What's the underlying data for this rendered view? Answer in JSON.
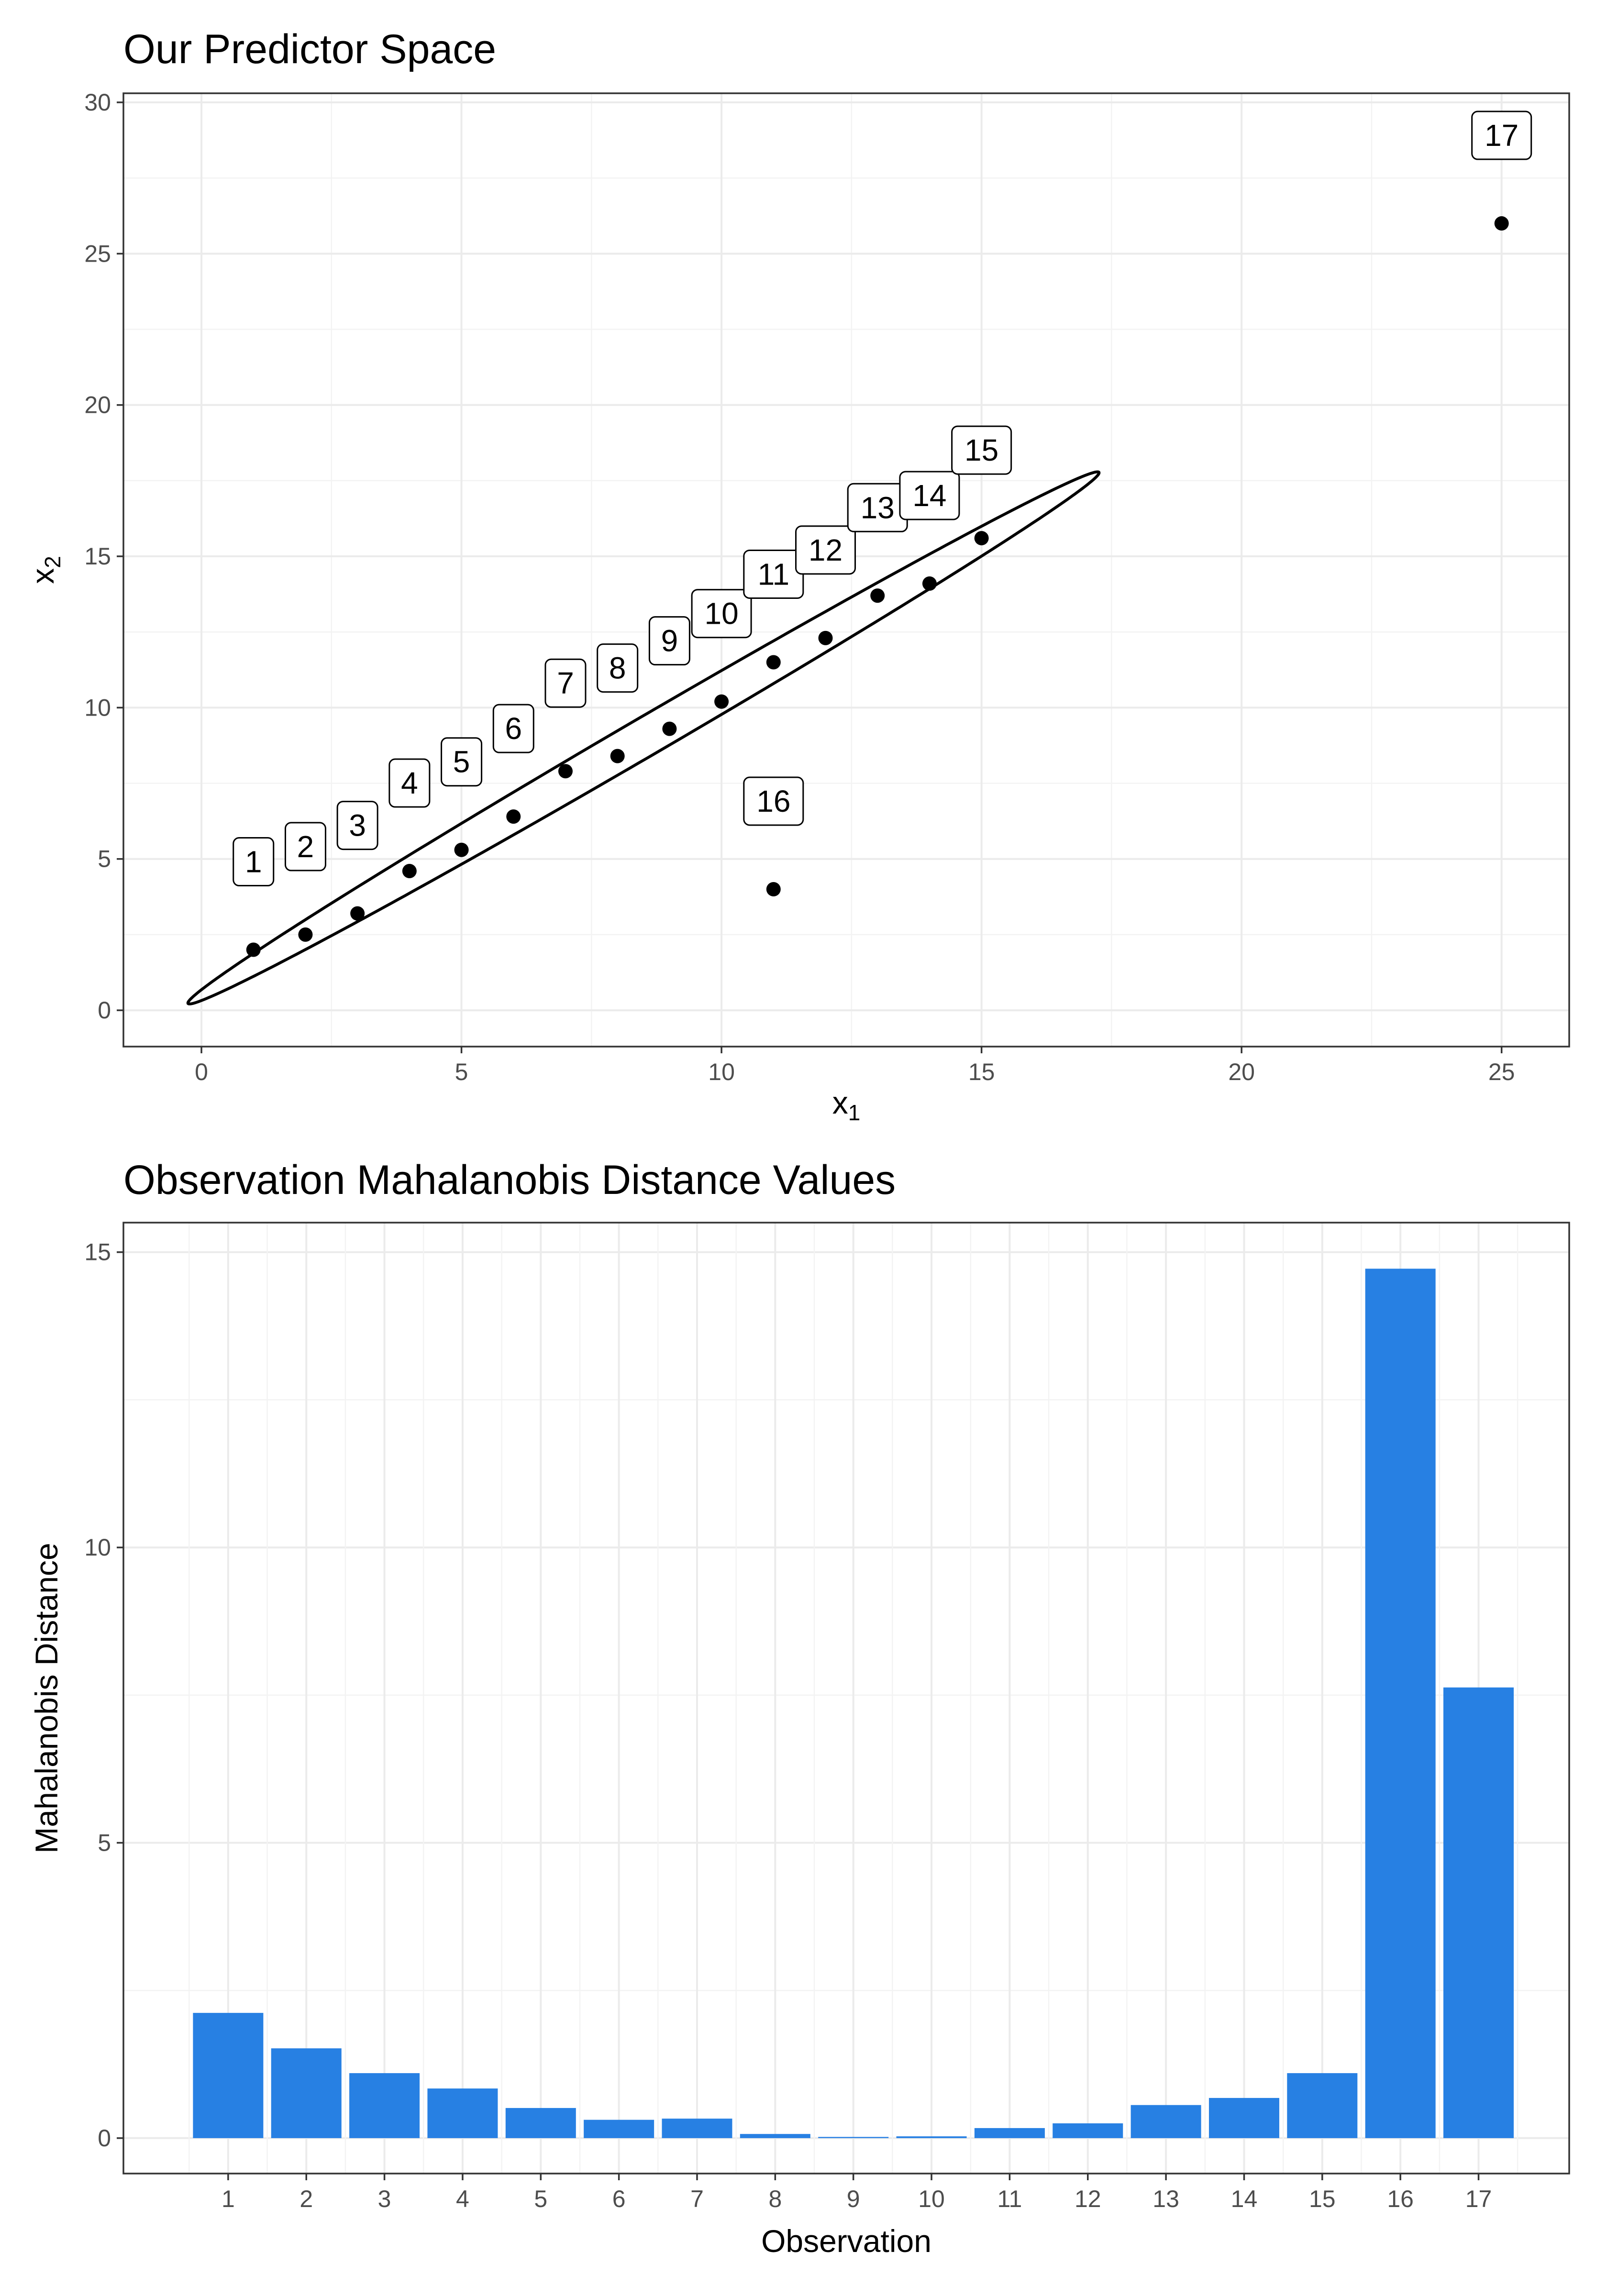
{
  "chart_data": [
    {
      "type": "scatter",
      "title": "Our Predictor Space",
      "xlabel": "x",
      "xlabel_sub": "1",
      "ylabel": "x",
      "ylabel_sub": "2",
      "xlim": [
        -1.5,
        26.3
      ],
      "ylim": [
        -1.2,
        30.3
      ],
      "xticks": [
        0,
        5,
        10,
        15,
        20,
        25
      ],
      "yticks": [
        0,
        5,
        10,
        15,
        20,
        25,
        30
      ],
      "grid": true,
      "points": [
        {
          "label": "1",
          "x": 1,
          "y": 2.0
        },
        {
          "label": "2",
          "x": 2,
          "y": 2.5
        },
        {
          "label": "3",
          "x": 3,
          "y": 3.2
        },
        {
          "label": "4",
          "x": 4,
          "y": 4.6
        },
        {
          "label": "5",
          "x": 5,
          "y": 5.3
        },
        {
          "label": "6",
          "x": 6,
          "y": 6.4
        },
        {
          "label": "7",
          "x": 7,
          "y": 7.9
        },
        {
          "label": "8",
          "x": 8,
          "y": 8.4
        },
        {
          "label": "9",
          "x": 9,
          "y": 9.3
        },
        {
          "label": "10",
          "x": 10,
          "y": 10.2
        },
        {
          "label": "11",
          "x": 11,
          "y": 11.5
        },
        {
          "label": "12",
          "x": 12,
          "y": 12.3
        },
        {
          "label": "13",
          "x": 13,
          "y": 13.7
        },
        {
          "label": "14",
          "x": 14,
          "y": 14.1
        },
        {
          "label": "15",
          "x": 15,
          "y": 15.6
        },
        {
          "label": "16",
          "x": 11,
          "y": 4.0
        },
        {
          "label": "17",
          "x": 25,
          "y": 26.0
        }
      ],
      "ellipse": {
        "center": [
          8.5,
          9.0
        ],
        "semi_major": 12.4,
        "semi_minor": 0.52,
        "angle_deg": 45.1
      }
    },
    {
      "type": "bar",
      "title": "Observation Mahalanobis Distance Values",
      "xlabel": "Observation",
      "ylabel": "Mahalanobis Distance",
      "categories": [
        "1",
        "2",
        "3",
        "4",
        "5",
        "6",
        "7",
        "8",
        "9",
        "10",
        "11",
        "12",
        "13",
        "14",
        "15",
        "16",
        "17"
      ],
      "values": [
        2.12,
        1.52,
        1.1,
        0.84,
        0.51,
        0.31,
        0.33,
        0.07,
        0.02,
        0.03,
        0.17,
        0.25,
        0.56,
        0.68,
        1.1,
        14.72,
        7.63
      ],
      "ylim": [
        -0.6,
        15.5
      ],
      "yticks": [
        0,
        5,
        10,
        15
      ],
      "bar_color": "#2780e3",
      "grid": true
    }
  ]
}
